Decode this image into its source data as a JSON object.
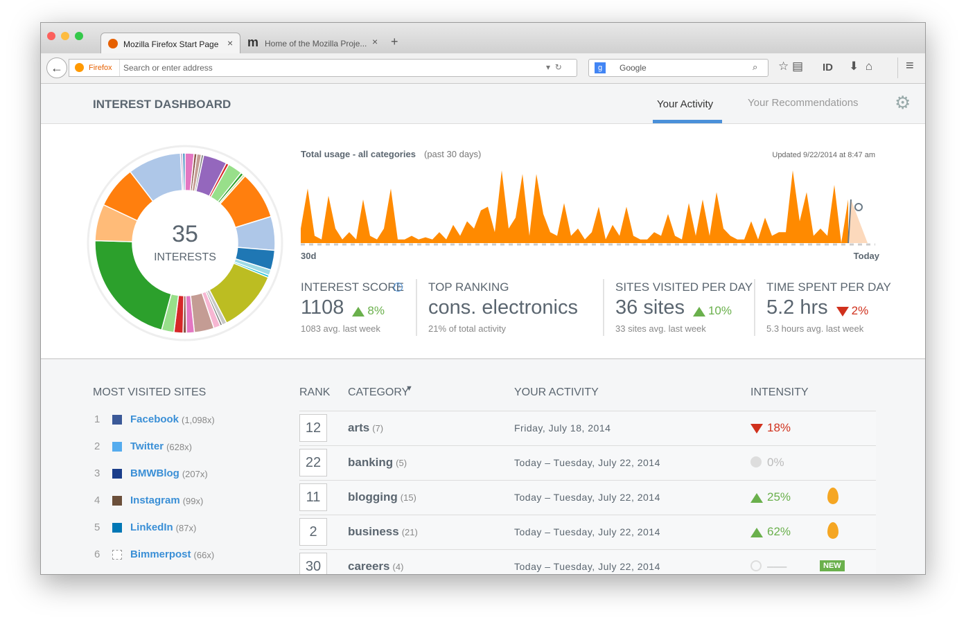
{
  "browser": {
    "tabs": [
      "Mozilla Firefox Start Page",
      "Home of the Mozilla Proje..."
    ],
    "identity": "Firefox",
    "address_placeholder": "Search or enter address",
    "search_placeholder": "Google",
    "toolbar_id": "ID"
  },
  "header": {
    "title": "INTEREST DASHBOARD",
    "tabs": [
      "Your Activity",
      "Your Recommendations"
    ]
  },
  "donut": {
    "value": "35",
    "label": "INTERESTS",
    "segments": [
      {
        "color": "#e377c2",
        "value": 1.6
      },
      {
        "color": "#8c564b",
        "value": 0.5
      },
      {
        "color": "#c49c94",
        "value": 0.8
      },
      {
        "color": "#7f7f7f",
        "value": 0.4
      },
      {
        "color": "#9467bd",
        "value": 4.2
      },
      {
        "color": "#d62728",
        "value": 0.5
      },
      {
        "color": "#98df8a",
        "value": 2.6
      },
      {
        "color": "#2ca02c",
        "value": 0.5
      },
      {
        "color": "#dbdb8d",
        "value": 0.4
      },
      {
        "color": "#ff7f0e",
        "value": 8.5
      },
      {
        "color": "#aec7e8",
        "value": 6
      },
      {
        "color": "#1f77b4",
        "value": 3.5
      },
      {
        "color": "#9edae5",
        "value": 1
      },
      {
        "color": "#17becf",
        "value": 0.4
      },
      {
        "color": "#bcbd22",
        "value": 11
      },
      {
        "color": "#c7c7c7",
        "value": 0.8
      },
      {
        "color": "#7f7f7f",
        "value": 0.4
      },
      {
        "color": "#f7b6d2",
        "value": 1.2
      },
      {
        "color": "#c49c94",
        "value": 3.5
      },
      {
        "color": "#e377c2",
        "value": 1.4
      },
      {
        "color": "#8c564b",
        "value": 0.6
      },
      {
        "color": "#d62728",
        "value": 1.6
      },
      {
        "color": "#98df8a",
        "value": 2.2
      },
      {
        "color": "#2ca02c",
        "value": 21
      },
      {
        "color": "#ffbb78",
        "value": 6.5
      },
      {
        "color": "#ff7f0e",
        "value": 7.5
      },
      {
        "color": "#aec7e8",
        "value": 9.5
      },
      {
        "color": "#c5b0d5",
        "value": 0.4
      },
      {
        "color": "#1f77b4",
        "value": 0.4
      }
    ]
  },
  "usage_chart": {
    "title": "Total usage - all categories",
    "period": "(past 30 days)",
    "updated": "Updated 9/22/2014 at 8:47 am",
    "start_label": "30d",
    "end_label": "Today",
    "color": "#ff8a00",
    "values": [
      20,
      75,
      10,
      5,
      65,
      20,
      5,
      15,
      5,
      60,
      10,
      5,
      20,
      75,
      5,
      5,
      10,
      5,
      8,
      5,
      15,
      5,
      25,
      10,
      30,
      20,
      45,
      50,
      15,
      100,
      20,
      35,
      95,
      10,
      95,
      40,
      15,
      10,
      55,
      10,
      20,
      5,
      15,
      50,
      5,
      25,
      10,
      50,
      10,
      5,
      5,
      15,
      10,
      40,
      10,
      5,
      55,
      10,
      60,
      10,
      70,
      20,
      10,
      5,
      5,
      30,
      5,
      35,
      10,
      15,
      15,
      100,
      30,
      70,
      10,
      20,
      10,
      80,
      0,
      60
    ]
  },
  "stats": [
    {
      "label": "INTEREST SCORE",
      "value": "1108",
      "change": "8%",
      "direction": "up",
      "note": "1083 avg. last week"
    },
    {
      "label": "TOP RANKING",
      "value": "cons. electronics",
      "note": "21% of total activity"
    },
    {
      "label": "SITES VISITED PER DAY",
      "value": "36 sites",
      "change": "10%",
      "direction": "up",
      "note": "33 sites avg. last week"
    },
    {
      "label": "TIME SPENT PER DAY",
      "value": "5.2 hrs",
      "change": "2%",
      "direction": "down",
      "note": "5.3 hours avg. last week"
    }
  ],
  "most_visited": {
    "title": "MOST VISITED SITES",
    "sites": [
      {
        "rank": "1",
        "name": "Facebook",
        "count": "(1,098x)"
      },
      {
        "rank": "2",
        "name": "Twitter",
        "count": "(628x)"
      },
      {
        "rank": "3",
        "name": "BMWBlog",
        "count": "(207x)"
      },
      {
        "rank": "4",
        "name": "Instagram",
        "count": "(99x)"
      },
      {
        "rank": "5",
        "name": "LinkedIn",
        "count": "(87x)"
      },
      {
        "rank": "6",
        "name": "Bimmerpost",
        "count": "(66x)"
      }
    ]
  },
  "table": {
    "headers": [
      "RANK",
      "CATEGORY",
      "YOUR ACTIVITY",
      "INTENSITY"
    ],
    "rows": [
      {
        "rank": "12",
        "category": "arts",
        "count": "(7)",
        "activity": "Friday, July 18, 2014",
        "intensity": "18%",
        "direction": "down"
      },
      {
        "rank": "22",
        "category": "banking",
        "count": "(5)",
        "activity": "Today – Tuesday, July 22, 2014",
        "intensity": "0%",
        "direction": "flat"
      },
      {
        "rank": "11",
        "category": "blogging",
        "count": "(15)",
        "activity": "Today – Tuesday, July 22, 2014",
        "intensity": "25%",
        "direction": "up",
        "hot": true
      },
      {
        "rank": "2",
        "category": "business",
        "count": "(21)",
        "activity": "Today – Tuesday, July 22, 2014",
        "intensity": "62%",
        "direction": "up",
        "hot": true
      },
      {
        "rank": "30",
        "category": "careers",
        "count": "(4)",
        "activity": "Today – Tuesday, July 22, 2014",
        "intensity": "–––",
        "direction": "none",
        "badge": "NEW"
      }
    ]
  }
}
